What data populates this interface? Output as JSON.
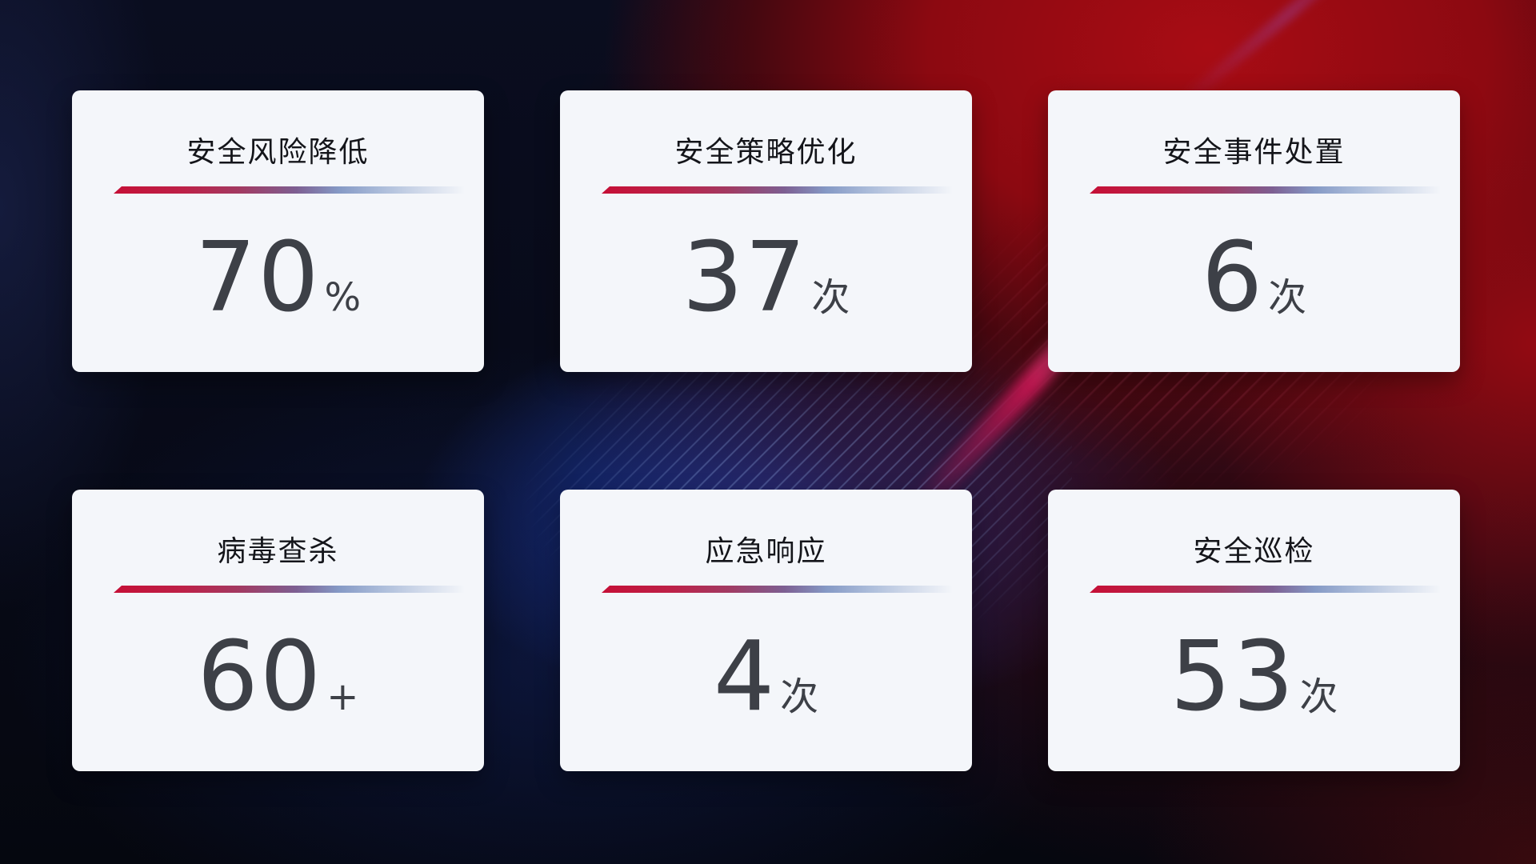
{
  "theme": {
    "background_base": "#05070F",
    "background_blue": "#1E3EAC",
    "background_red": "#A80C14",
    "card_background": "#F4F6FA",
    "title_color": "#14151A",
    "value_color": "#3D4047",
    "divider_red": "#C50F36",
    "divider_blue": "#CCD6E8"
  },
  "cards": [
    {
      "title": "安全风险降低",
      "value": "70",
      "unit": "%"
    },
    {
      "title": "安全策略优化",
      "value": "37",
      "unit": "次"
    },
    {
      "title": "安全事件处置",
      "value": "6",
      "unit": "次"
    },
    {
      "title": "病毒查杀",
      "value": "60",
      "unit": "+"
    },
    {
      "title": "应急响应",
      "value": "4",
      "unit": "次"
    },
    {
      "title": "安全巡检",
      "value": "53",
      "unit": "次"
    }
  ]
}
